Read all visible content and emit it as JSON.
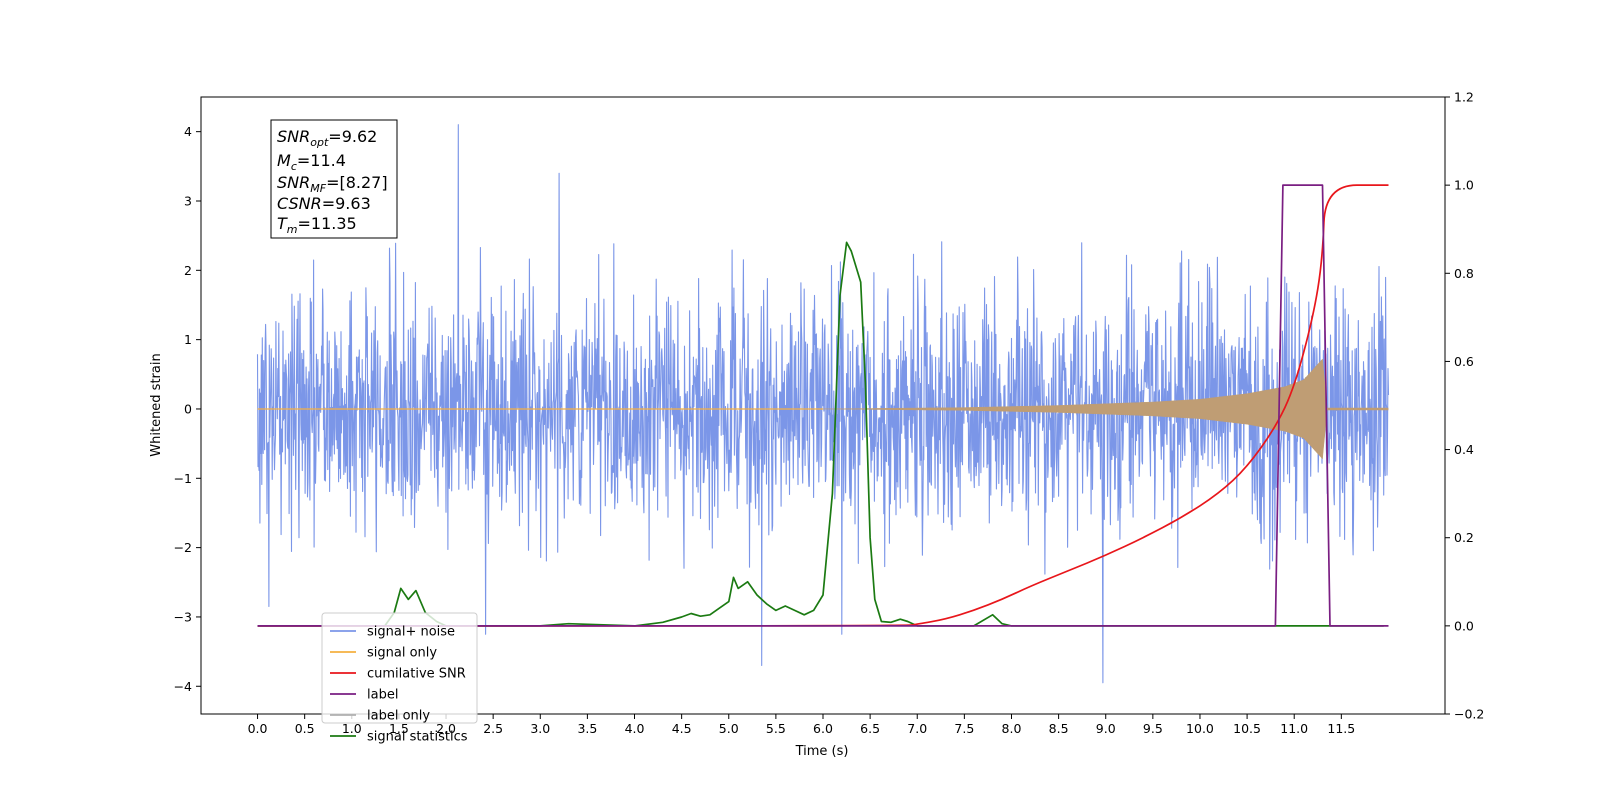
{
  "chart_data": {
    "type": "line",
    "title": "",
    "xlabel": "Time (s)",
    "ylabel": "Whitened strain",
    "y2label": "",
    "xlim": [
      -0.6,
      12.6
    ],
    "ylim": [
      -4.4,
      4.5
    ],
    "y2lim": [
      -0.2,
      1.2
    ],
    "x_ticks": [
      0.0,
      0.5,
      1.0,
      1.5,
      2.0,
      2.5,
      3.0,
      3.5,
      4.0,
      4.5,
      5.0,
      5.5,
      6.0,
      6.5,
      7.0,
      7.5,
      8.0,
      8.5,
      9.0,
      9.5,
      10.0,
      10.5,
      11.0,
      11.5
    ],
    "x_tick_labels": [
      "0.0",
      "0.5",
      "1.0",
      "1.5",
      "2.0",
      "2.5",
      "3.0",
      "3.5",
      "4.0",
      "4.5",
      "5.0",
      "5.5",
      "6.0",
      "6.5",
      "7.0",
      "7.5",
      "8.0",
      "8.5",
      "9.0",
      "9.5",
      "10.0",
      "10.5",
      "11.0",
      "11.5"
    ],
    "y_ticks": [
      -4,
      -3,
      -2,
      -1,
      0,
      1,
      2,
      3,
      4
    ],
    "y_tick_labels": [
      "−4",
      "−3",
      "−2",
      "−1",
      "0",
      "1",
      "2",
      "3",
      "4"
    ],
    "y2_ticks": [
      -0.2,
      0.0,
      0.2,
      0.4,
      0.6,
      0.8,
      1.0,
      1.2
    ],
    "y2_tick_labels": [
      "−0.2",
      "0.0",
      "0.2",
      "0.4",
      "0.6",
      "0.8",
      "1.0",
      "1.2"
    ],
    "grid": false,
    "legend_position": "lower-left",
    "stats_box": {
      "snr_opt": {
        "base": "SNR",
        "sub": "opt",
        "value": "=9.62"
      },
      "mc": {
        "base": "M",
        "sub": "c",
        "value": "=11.4"
      },
      "snr_mf": {
        "base": "SNR",
        "sub": "MF",
        "value": "=[8.27]"
      },
      "csnr": {
        "base": "CSNR",
        "sub": "",
        "value": "=9.63"
      },
      "tm": {
        "base": "T",
        "sub": "m",
        "value": "=11.35"
      }
    },
    "series": [
      {
        "name": "signal+ noise",
        "axis": "left",
        "color": "#7b96e8",
        "x_range": [
          0.0,
          12.0
        ],
        "noise_sigma": 0.85,
        "approx_envelope_max": 2.5,
        "peak_events": [
          {
            "x": 2.13,
            "y": 4.1
          },
          {
            "x": 3.2,
            "y": 3.4
          },
          {
            "x": 5.35,
            "y": -3.7
          },
          {
            "x": 6.2,
            "y": -3.25
          },
          {
            "x": 8.97,
            "y": -3.95
          },
          {
            "x": 0.12,
            "y": -2.85
          },
          {
            "x": 2.42,
            "y": -3.25
          }
        ]
      },
      {
        "name": "signal only",
        "axis": "left",
        "color": "#f5b041",
        "fill_color": "#bf9d74",
        "x_range": [
          0.0,
          12.0
        ],
        "chirp_start": 6.0,
        "merger_time": 11.35,
        "envelope": [
          [
            6.0,
            0.0
          ],
          [
            7.5,
            0.02
          ],
          [
            8.5,
            0.05
          ],
          [
            9.5,
            0.1
          ],
          [
            10.0,
            0.14
          ],
          [
            10.5,
            0.22
          ],
          [
            10.9,
            0.32
          ],
          [
            11.1,
            0.42
          ],
          [
            11.3,
            0.72
          ],
          [
            11.35,
            0.0
          ],
          [
            12.0,
            0.0
          ]
        ]
      },
      {
        "name": "cumilative SNR",
        "axis": "right",
        "color": "#e8161b",
        "x": [
          0.0,
          6.9,
          7.0,
          7.3,
          7.6,
          7.9,
          8.2,
          8.6,
          9.0,
          9.4,
          9.8,
          10.2,
          10.5,
          10.8,
          11.0,
          11.2,
          11.3,
          11.33,
          12.0
        ],
        "values": [
          0.0,
          0.0,
          0.004,
          0.015,
          0.035,
          0.06,
          0.09,
          0.125,
          0.16,
          0.2,
          0.245,
          0.3,
          0.36,
          0.45,
          0.54,
          0.7,
          0.83,
          1.0,
          1.0
        ]
      },
      {
        "name": "label",
        "axis": "right",
        "color": "#7a1e82",
        "x": [
          0.0,
          10.8,
          10.88,
          11.3,
          11.38,
          12.0
        ],
        "values": [
          0.0,
          0.0,
          1.0,
          1.0,
          0.0,
          0.0
        ]
      },
      {
        "name": "label only",
        "axis": "right",
        "color": "#b0b0b0",
        "x": [],
        "values": []
      },
      {
        "name": "signal statistics",
        "axis": "right",
        "color": "#1b7a12",
        "x": [
          0.0,
          1.35,
          1.45,
          1.52,
          1.6,
          1.68,
          1.78,
          1.9,
          2.0,
          3.0,
          3.3,
          4.0,
          4.3,
          4.5,
          4.6,
          4.7,
          4.8,
          4.9,
          5.0,
          5.05,
          5.1,
          5.2,
          5.3,
          5.4,
          5.5,
          5.6,
          5.7,
          5.8,
          5.9,
          6.0,
          6.1,
          6.18,
          6.25,
          6.3,
          6.4,
          6.45,
          6.5,
          6.55,
          6.62,
          6.72,
          6.82,
          6.9,
          7.0,
          7.6,
          7.8,
          7.9,
          8.0,
          11.95
        ],
        "values": [
          0.0,
          0.0,
          0.03,
          0.085,
          0.06,
          0.08,
          0.03,
          0.01,
          0.0,
          0.0,
          0.005,
          0.0,
          0.008,
          0.02,
          0.028,
          0.022,
          0.025,
          0.04,
          0.055,
          0.11,
          0.085,
          0.1,
          0.07,
          0.05,
          0.035,
          0.045,
          0.035,
          0.025,
          0.035,
          0.07,
          0.3,
          0.75,
          0.87,
          0.85,
          0.78,
          0.55,
          0.2,
          0.06,
          0.01,
          0.008,
          0.015,
          0.01,
          0.0,
          0.0,
          0.025,
          0.005,
          0.0,
          0.0
        ]
      }
    ]
  }
}
